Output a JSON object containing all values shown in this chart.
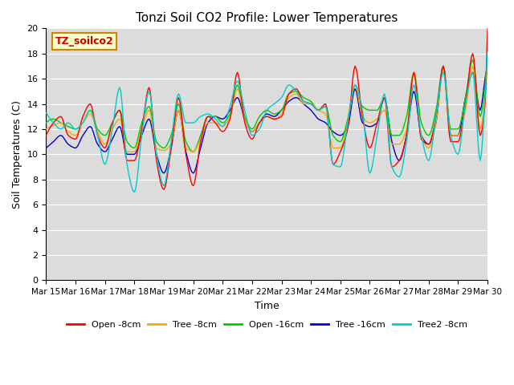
{
  "title": "Tonzi Soil CO2 Profile: Lower Temperatures",
  "ylabel": "Soil Temperatures (C)",
  "xlabel": "Time",
  "annotation": "TZ_soilco2",
  "ylim": [
    0,
    20
  ],
  "background_color": "#dcdcdc",
  "series_colors": {
    "Open -8cm": "#ff0000",
    "Tree -8cm": "#ffa500",
    "Open -16cm": "#00cc00",
    "Tree -16cm": "#0000cc",
    "Tree2 -8cm": "#00cccc"
  },
  "xtick_labels": [
    "Mar 15",
    "Mar 16",
    "Mar 17",
    "Mar 18",
    "Mar 19",
    "Mar 20",
    "Mar 21",
    "Mar 22",
    "Mar 23",
    "Mar 24",
    "Mar 25",
    "Mar 26",
    "Mar 27",
    "Mar 28",
    "Mar 29",
    "Mar 30"
  ],
  "ytick_labels": [
    "0",
    "2",
    "4",
    "6",
    "8",
    "10",
    "12",
    "14",
    "16",
    "18",
    "20"
  ]
}
